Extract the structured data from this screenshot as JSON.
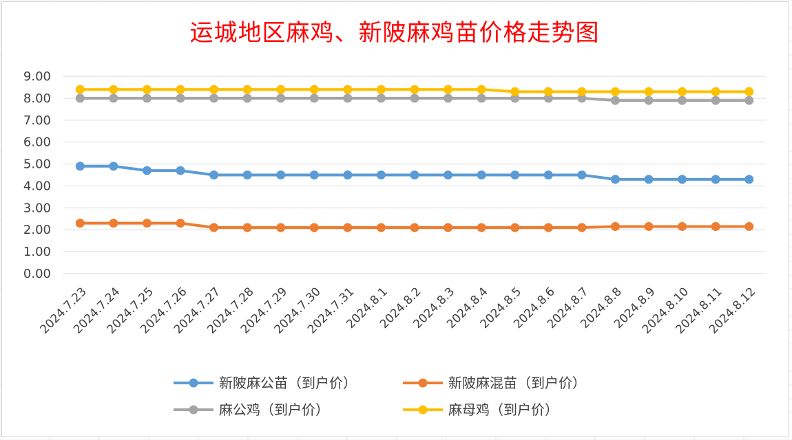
{
  "chart_data": {
    "type": "line",
    "title": "运城地区麻鸡、新陂麻鸡苗价格走势图",
    "xlabel": "",
    "ylabel": "",
    "x": [
      "2024.7.23",
      "2024.7.24",
      "2024.7.25",
      "2024.7.26",
      "2024.7.27",
      "2024.7.28",
      "2024.7.29",
      "2024.7.30",
      "2024.7.31",
      "2024.8.1",
      "2024.8.2",
      "2024.8.3",
      "2024.8.4",
      "2024.8.5",
      "2024.8.6",
      "2024.8.7",
      "2024.8.8",
      "2024.8.9",
      "2024.8.10",
      "2024.8.11",
      "2024.8.12"
    ],
    "ylim": [
      0,
      9
    ],
    "yticks": [
      "0.00",
      "1.00",
      "2.00",
      "3.00",
      "4.00",
      "5.00",
      "6.00",
      "7.00",
      "8.00",
      "9.00"
    ],
    "grid": true,
    "legend_position": "bottom",
    "series": [
      {
        "name": "新陂麻公苗（到户价）",
        "color": "#5b9bd5",
        "values": [
          4.9,
          4.9,
          4.7,
          4.7,
          4.5,
          4.5,
          4.5,
          4.5,
          4.5,
          4.5,
          4.5,
          4.5,
          4.5,
          4.5,
          4.5,
          4.5,
          4.3,
          4.3,
          4.3,
          4.3,
          4.3
        ]
      },
      {
        "name": "新陂麻混苗（到户价）",
        "color": "#ed7d31",
        "values": [
          2.3,
          2.3,
          2.3,
          2.3,
          2.1,
          2.1,
          2.1,
          2.1,
          2.1,
          2.1,
          2.1,
          2.1,
          2.1,
          2.1,
          2.1,
          2.1,
          2.15,
          2.15,
          2.15,
          2.15,
          2.15
        ]
      },
      {
        "name": "麻公鸡（到户价）",
        "color": "#a5a5a5",
        "values": [
          8.0,
          8.0,
          8.0,
          8.0,
          8.0,
          8.0,
          8.0,
          8.0,
          8.0,
          8.0,
          8.0,
          8.0,
          8.0,
          8.0,
          8.0,
          8.0,
          7.9,
          7.9,
          7.9,
          7.9,
          7.9
        ]
      },
      {
        "name": "麻母鸡（到户价）",
        "color": "#ffc000",
        "values": [
          8.4,
          8.4,
          8.4,
          8.4,
          8.4,
          8.4,
          8.4,
          8.4,
          8.4,
          8.4,
          8.4,
          8.4,
          8.4,
          8.3,
          8.3,
          8.3,
          8.3,
          8.3,
          8.3,
          8.3,
          8.3
        ]
      }
    ]
  }
}
